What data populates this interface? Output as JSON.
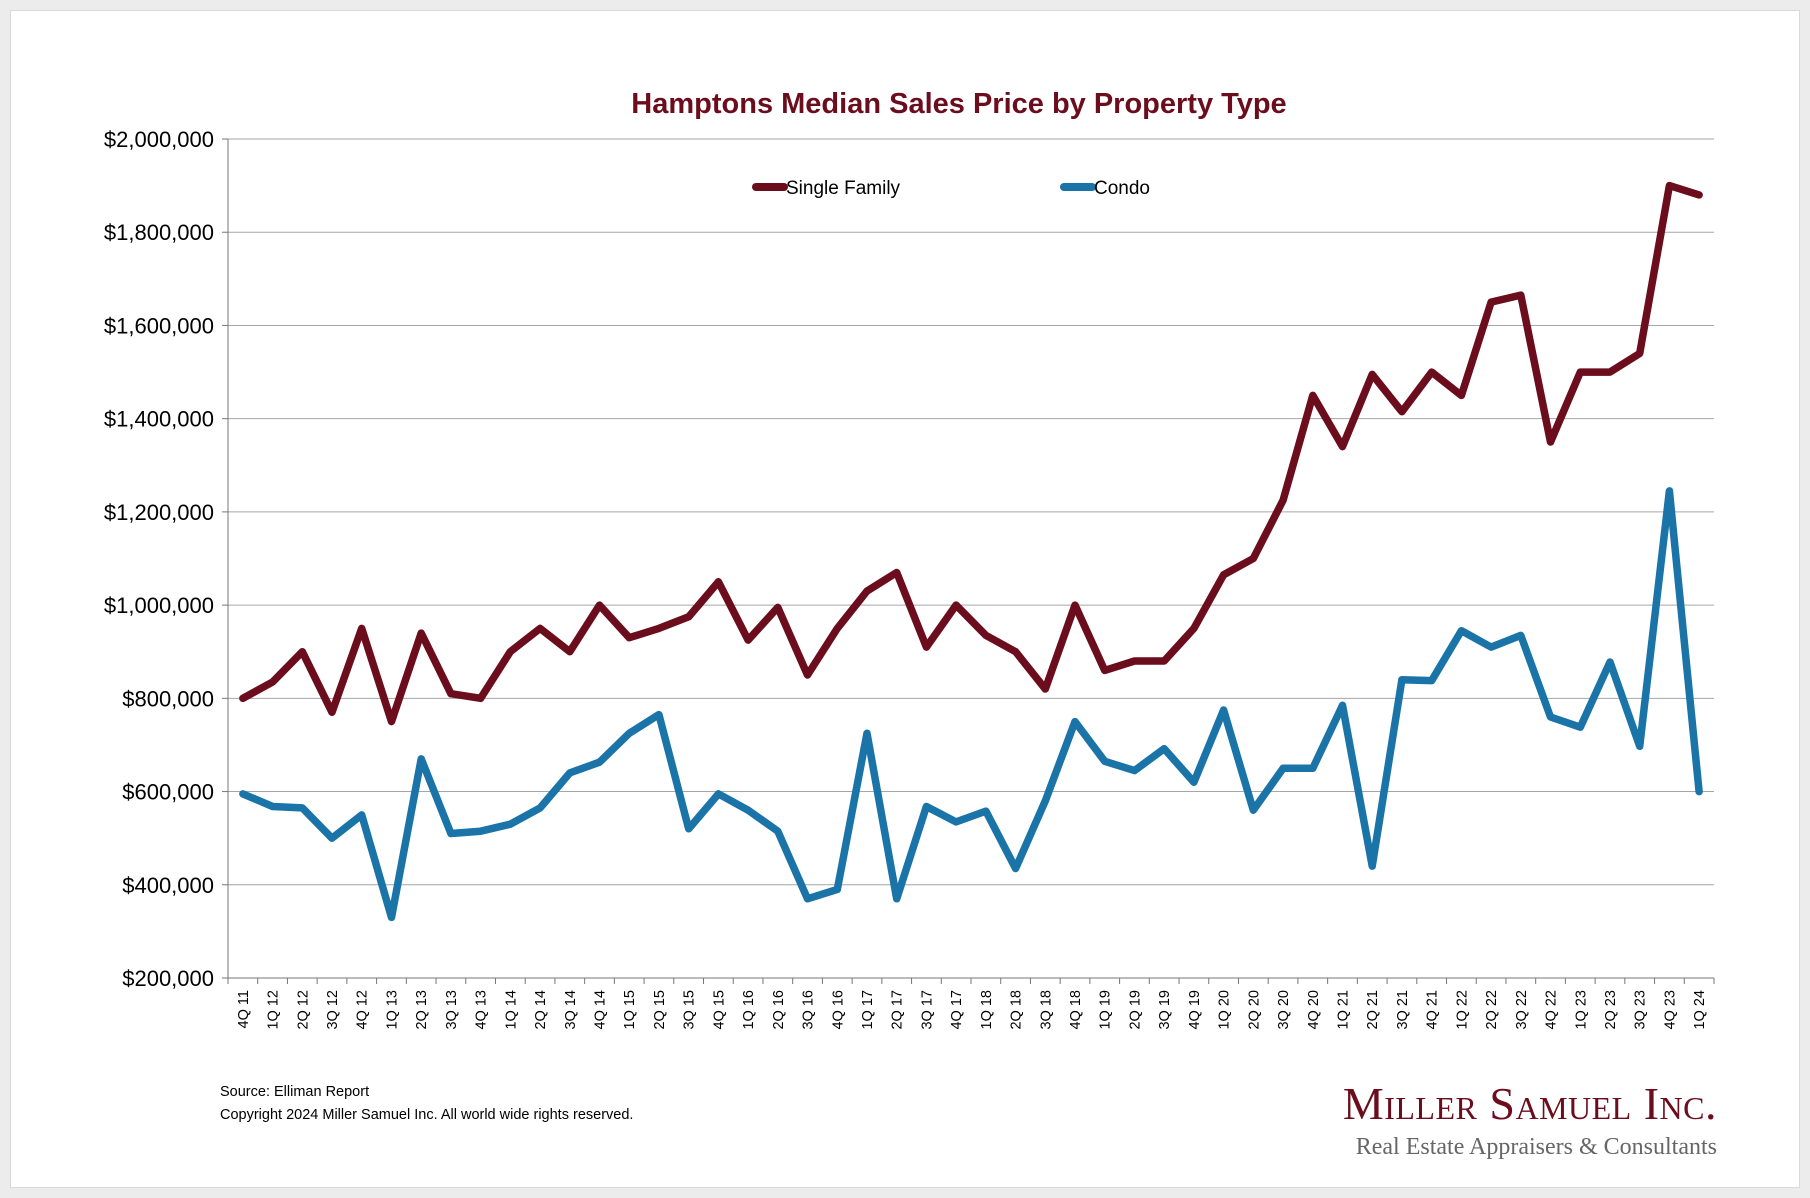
{
  "chart_data": {
    "type": "line",
    "title": "Hamptons Median Sales Price by Property Type",
    "xlabel": "",
    "ylabel": "",
    "ylim": [
      200000,
      2000000
    ],
    "yticks": [
      200000,
      400000,
      600000,
      800000,
      1000000,
      1200000,
      1400000,
      1600000,
      1800000,
      2000000
    ],
    "ytick_labels": [
      "$200,000",
      "$400,000",
      "$600,000",
      "$800,000",
      "$1,000,000",
      "$1,200,000",
      "$1,400,000",
      "$1,600,000",
      "$1,800,000",
      "$2,000,000"
    ],
    "grid": true,
    "legend_position": "top-center",
    "categories": [
      "4Q 11",
      "1Q 12",
      "2Q 12",
      "3Q 12",
      "4Q 12",
      "1Q 13",
      "2Q 13",
      "3Q 13",
      "4Q 13",
      "1Q 14",
      "2Q 14",
      "3Q 14",
      "4Q 14",
      "1Q 15",
      "2Q 15",
      "3Q 15",
      "4Q 15",
      "1Q 16",
      "2Q 16",
      "3Q 16",
      "4Q 16",
      "1Q 17",
      "2Q 17",
      "3Q 17",
      "4Q 17",
      "1Q 18",
      "2Q 18",
      "3Q 18",
      "4Q 18",
      "1Q 19",
      "2Q 19",
      "3Q 19",
      "4Q 19",
      "1Q 20",
      "2Q 20",
      "3Q 20",
      "4Q 20",
      "1Q 21",
      "2Q 21",
      "3Q 21",
      "4Q 21",
      "1Q 22",
      "2Q 22",
      "3Q 22",
      "4Q 22",
      "1Q 23",
      "2Q 23",
      "3Q 23",
      "4Q 23",
      "1Q 24"
    ],
    "series": [
      {
        "name": "Single Family",
        "color": "#6b0d1c",
        "values": [
          800000,
          835000,
          900000,
          770000,
          950000,
          750000,
          940000,
          810000,
          800000,
          900000,
          950000,
          900000,
          1000000,
          930000,
          950000,
          975000,
          1050000,
          925000,
          995000,
          850000,
          950000,
          1030000,
          1070000,
          910000,
          1000000,
          935000,
          900000,
          820000,
          1000000,
          860000,
          880000,
          880000,
          950000,
          1065000,
          1100000,
          1225000,
          1450000,
          1340000,
          1495000,
          1415000,
          1500000,
          1450000,
          1650000,
          1665000,
          1350000,
          1500000,
          1500000,
          1540000,
          1900000,
          1880000
        ]
      },
      {
        "name": "Condo",
        "color": "#1a74a8",
        "values": [
          595000,
          568000,
          565000,
          500000,
          550000,
          330000,
          670000,
          510000,
          515000,
          530000,
          565000,
          640000,
          663000,
          725000,
          765000,
          520000,
          595000,
          560000,
          515000,
          370000,
          390000,
          725000,
          370000,
          568000,
          535000,
          558000,
          435000,
          580000,
          750000,
          665000,
          645000,
          692000,
          620000,
          775000,
          560000,
          650000,
          650000,
          785000,
          440000,
          840000,
          838000,
          945000,
          910000,
          935000,
          760000,
          738000,
          878000,
          697000,
          1245000,
          600000
        ]
      }
    ]
  },
  "footer": {
    "source": "Source: Elliman Report",
    "copyright": "Copyright 2024 Miller Samuel Inc.  All world wide rights reserved."
  },
  "brand": {
    "name": "Miller Samuel Inc.",
    "tagline": "Real Estate Appraisers & Consultants"
  }
}
